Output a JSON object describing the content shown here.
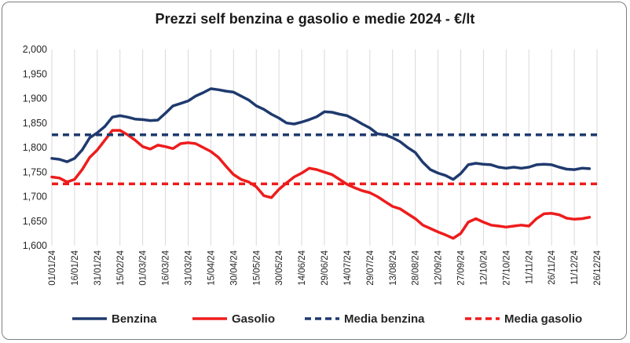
{
  "chart_data": {
    "type": "line",
    "title": "Prezzi self benzina e gasolio e medie 2024 - €/lt",
    "xlabel": "",
    "ylabel": "",
    "ylim": [
      1.6,
      2.0
    ],
    "yticks": [
      "2,000",
      "1,950",
      "1,900",
      "1,850",
      "1,800",
      "1,750",
      "1,700",
      "1,650",
      "1,600"
    ],
    "xticks": [
      "01/01/24",
      "16/01/24",
      "31/01/24",
      "15/02/24",
      "01/03/24",
      "16/03/24",
      "31/03/24",
      "15/04/24",
      "30/04/24",
      "15/05/24",
      "30/05/24",
      "14/06/24",
      "29/06/24",
      "14/07/24",
      "29/07/24",
      "13/08/24",
      "28/08/24",
      "12/09/24",
      "27/09/24",
      "12/10/24",
      "27/10/24",
      "11/11/24",
      "26/11/24",
      "11/12/24",
      "26/12/24"
    ],
    "grid": "vertical",
    "legend_position": "bottom",
    "series": [
      {
        "name": "Benzina",
        "color": "#1f3a6e",
        "style": "solid",
        "x": [
          0,
          5,
          10,
          15,
          20,
          25,
          30,
          35,
          40,
          45,
          50,
          55,
          60,
          65,
          70,
          75,
          80,
          85,
          90,
          95,
          100,
          105,
          110,
          115,
          120,
          125,
          130,
          135,
          140,
          145,
          150,
          155,
          160,
          165,
          170,
          175,
          180,
          185,
          190,
          195,
          200,
          205,
          210,
          215,
          220,
          225,
          230,
          235,
          240,
          245,
          250,
          255,
          260,
          265,
          270,
          275,
          280,
          285,
          290,
          295,
          300,
          305,
          310,
          315,
          320,
          325,
          330,
          335,
          340,
          345,
          350,
          355
        ],
        "values": [
          1.778,
          1.776,
          1.771,
          1.778,
          1.795,
          1.82,
          1.83,
          1.843,
          1.862,
          1.865,
          1.862,
          1.858,
          1.857,
          1.855,
          1.856,
          1.87,
          1.885,
          1.89,
          1.895,
          1.905,
          1.912,
          1.92,
          1.918,
          1.915,
          1.913,
          1.905,
          1.897,
          1.885,
          1.878,
          1.868,
          1.86,
          1.85,
          1.848,
          1.852,
          1.857,
          1.863,
          1.873,
          1.872,
          1.868,
          1.865,
          1.857,
          1.848,
          1.84,
          1.828,
          1.826,
          1.82,
          1.812,
          1.8,
          1.79,
          1.77,
          1.755,
          1.748,
          1.743,
          1.735,
          1.747,
          1.765,
          1.768,
          1.766,
          1.765,
          1.76,
          1.758,
          1.76,
          1.758,
          1.76,
          1.765,
          1.766,
          1.765,
          1.76,
          1.756,
          1.755,
          1.758,
          1.757
        ]
      },
      {
        "name": "Gasolio",
        "color": "#ee1c1c",
        "style": "solid",
        "x": [
          0,
          5,
          10,
          15,
          20,
          25,
          30,
          35,
          40,
          45,
          50,
          55,
          60,
          65,
          70,
          75,
          80,
          85,
          90,
          95,
          100,
          105,
          110,
          115,
          120,
          125,
          130,
          135,
          140,
          145,
          150,
          155,
          160,
          165,
          170,
          175,
          180,
          185,
          190,
          195,
          200,
          205,
          210,
          215,
          220,
          225,
          230,
          235,
          240,
          245,
          250,
          255,
          260,
          265,
          270,
          275,
          280,
          285,
          290,
          295,
          300,
          305,
          310,
          315,
          320,
          325,
          330,
          335,
          340,
          345,
          350,
          355
        ],
        "values": [
          1.74,
          1.738,
          1.73,
          1.735,
          1.755,
          1.78,
          1.795,
          1.815,
          1.835,
          1.835,
          1.826,
          1.815,
          1.802,
          1.797,
          1.805,
          1.802,
          1.798,
          1.808,
          1.81,
          1.808,
          1.8,
          1.792,
          1.78,
          1.762,
          1.745,
          1.735,
          1.73,
          1.72,
          1.702,
          1.698,
          1.715,
          1.728,
          1.74,
          1.748,
          1.758,
          1.755,
          1.75,
          1.745,
          1.735,
          1.725,
          1.718,
          1.712,
          1.708,
          1.7,
          1.69,
          1.68,
          1.675,
          1.665,
          1.655,
          1.642,
          1.635,
          1.628,
          1.622,
          1.615,
          1.625,
          1.648,
          1.655,
          1.648,
          1.642,
          1.64,
          1.638,
          1.64,
          1.642,
          1.64,
          1.655,
          1.665,
          1.666,
          1.663,
          1.656,
          1.654,
          1.655,
          1.658
        ]
      },
      {
        "name": "Media benzina",
        "color": "#1f3a6e",
        "style": "dashed",
        "x": [
          0,
          360
        ],
        "values": [
          1.826,
          1.826
        ]
      },
      {
        "name": "Media gasolio",
        "color": "#ee1c1c",
        "style": "dashed",
        "x": [
          0,
          360
        ],
        "values": [
          1.726,
          1.726
        ]
      }
    ]
  }
}
